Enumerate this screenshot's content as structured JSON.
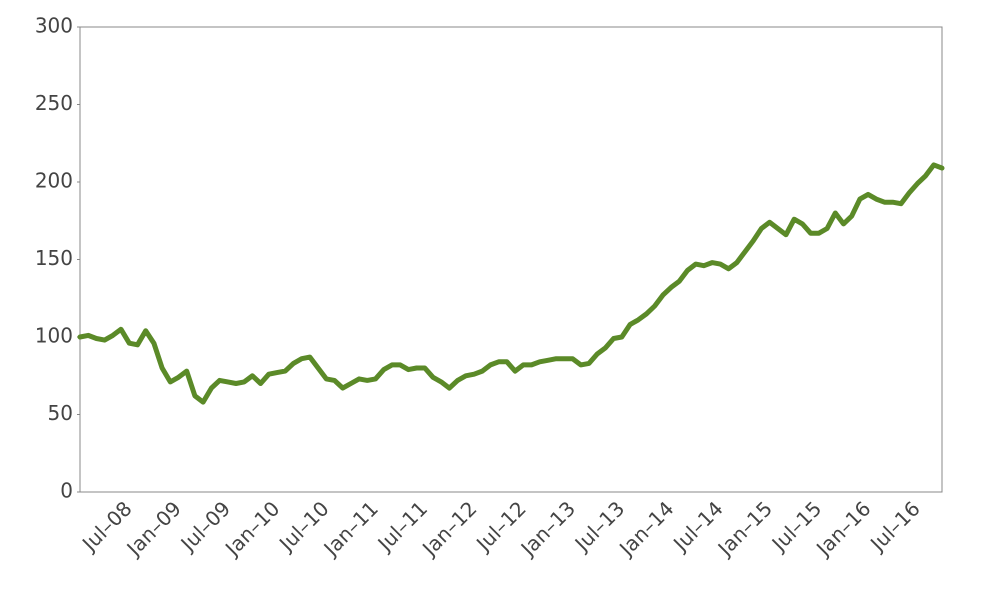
{
  "chart_data": {
    "type": "line",
    "categories": [
      null,
      null,
      null,
      null,
      null,
      null,
      "Jul–08",
      null,
      null,
      null,
      null,
      null,
      "Jan–09",
      null,
      null,
      null,
      null,
      null,
      "Jul–09",
      null,
      null,
      null,
      null,
      null,
      "Jan–10",
      null,
      null,
      null,
      null,
      null,
      "Jul–10",
      null,
      null,
      null,
      null,
      null,
      "Jan–11",
      null,
      null,
      null,
      null,
      null,
      "Jul–11",
      null,
      null,
      null,
      null,
      null,
      "Jan–12",
      null,
      null,
      null,
      null,
      null,
      "Jul–12",
      null,
      null,
      null,
      null,
      null,
      "Jan–13",
      null,
      null,
      null,
      null,
      null,
      "Jul–13",
      null,
      null,
      null,
      null,
      null,
      "Jan–14",
      null,
      null,
      null,
      null,
      null,
      "Jul–14",
      null,
      null,
      null,
      null,
      null,
      "Jan–15",
      null,
      null,
      null,
      null,
      null,
      "Jul–15",
      null,
      null,
      null,
      null,
      null,
      "Jan–16",
      null,
      null,
      null,
      null,
      null,
      "Jul–16",
      null,
      null,
      null
    ],
    "values": [
      100,
      101,
      99,
      98,
      101,
      105,
      96,
      95,
      104,
      96,
      80,
      71,
      74,
      78,
      62,
      58,
      67,
      72,
      71,
      70,
      71,
      75,
      70,
      76,
      77,
      78,
      83,
      86,
      87,
      80,
      73,
      72,
      67,
      70,
      73,
      72,
      73,
      79,
      82,
      82,
      79,
      80,
      80,
      74,
      71,
      67,
      72,
      75,
      76,
      78,
      82,
      84,
      84,
      78,
      82,
      82,
      84,
      85,
      86,
      86,
      86,
      82,
      83,
      89,
      93,
      99,
      100,
      108,
      111,
      115,
      120,
      127,
      132,
      136,
      143,
      147,
      146,
      148,
      147,
      144,
      148,
      155,
      162,
      170,
      174,
      170,
      166,
      176,
      173,
      167,
      167,
      170,
      180,
      173,
      178,
      189,
      192,
      189,
      187,
      187,
      186,
      193,
      199,
      204,
      211,
      209
    ],
    "color": "#5b8a28",
    "ylim": [
      0,
      300
    ],
    "yticks": [
      0,
      50,
      100,
      150,
      200,
      250,
      300
    ],
    "grid": false
  }
}
